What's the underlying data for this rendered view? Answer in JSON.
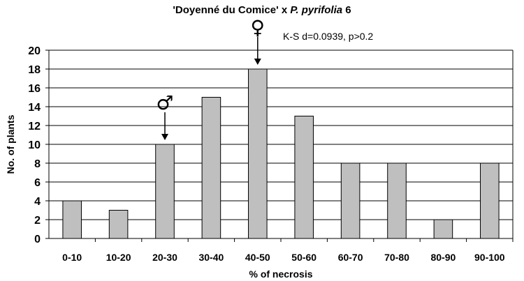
{
  "chart_data": {
    "type": "bar",
    "title_parts": [
      "'Doyenné du Comice' x ",
      "P. pyrifolia",
      " 6"
    ],
    "annotation": "K-S d=0.0939, p>0.2",
    "xlabel": "% of necrosis",
    "ylabel": "No. of plants",
    "categories": [
      "0-10",
      "10-20",
      "20-30",
      "30-40",
      "40-50",
      "50-60",
      "60-70",
      "70-80",
      "80-90",
      "90-100"
    ],
    "values": [
      4,
      3,
      10,
      15,
      18,
      13,
      8,
      8,
      2,
      8
    ],
    "ylim": [
      0,
      20
    ],
    "yticks": [
      0,
      2,
      4,
      6,
      8,
      10,
      12,
      14,
      16,
      18,
      20
    ],
    "grid": true,
    "markers": [
      {
        "symbol": "♂",
        "category": "20-30",
        "name": "male"
      },
      {
        "symbol": "♀",
        "category": "40-50",
        "name": "female"
      }
    ],
    "colors": {
      "bar": "#bfbfbf",
      "bar_stroke": "#000000",
      "grid": "#000000"
    }
  }
}
